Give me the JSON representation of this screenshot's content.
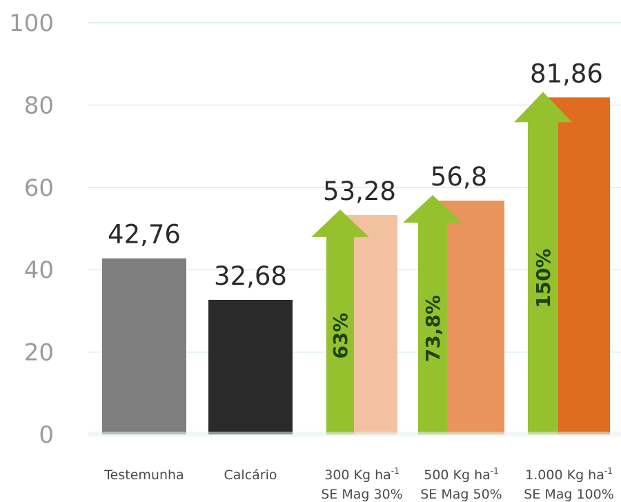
{
  "chart_data": {
    "type": "bar",
    "categories": [
      [
        "Testemunha"
      ],
      [
        "Calcário"
      ],
      [
        "300 Kg ha-1",
        "SE Mag 30%"
      ],
      [
        "500 Kg ha-1",
        "SE Mag 50%"
      ],
      [
        "1.000 Kg ha-1",
        "SE Mag 100%"
      ]
    ],
    "values": [
      42.76,
      32.68,
      53.28,
      56.8,
      81.86
    ],
    "value_labels": [
      "42,76",
      "32,68",
      "53,28",
      "56,8",
      "81,86"
    ],
    "bar_colors": [
      "#7f7f7f",
      "#2a2a2a",
      "#f2c19f",
      "#e8945a",
      "#e06d1f"
    ],
    "increase_labels": [
      null,
      null,
      "63%",
      "73,8%",
      "150%"
    ],
    "arrow_color": "#96c12f",
    "ylim": [
      0,
      100
    ],
    "yticks": [
      0,
      20,
      40,
      60,
      80,
      100
    ],
    "grid": true,
    "title": "",
    "xlabel": "",
    "ylabel": ""
  }
}
